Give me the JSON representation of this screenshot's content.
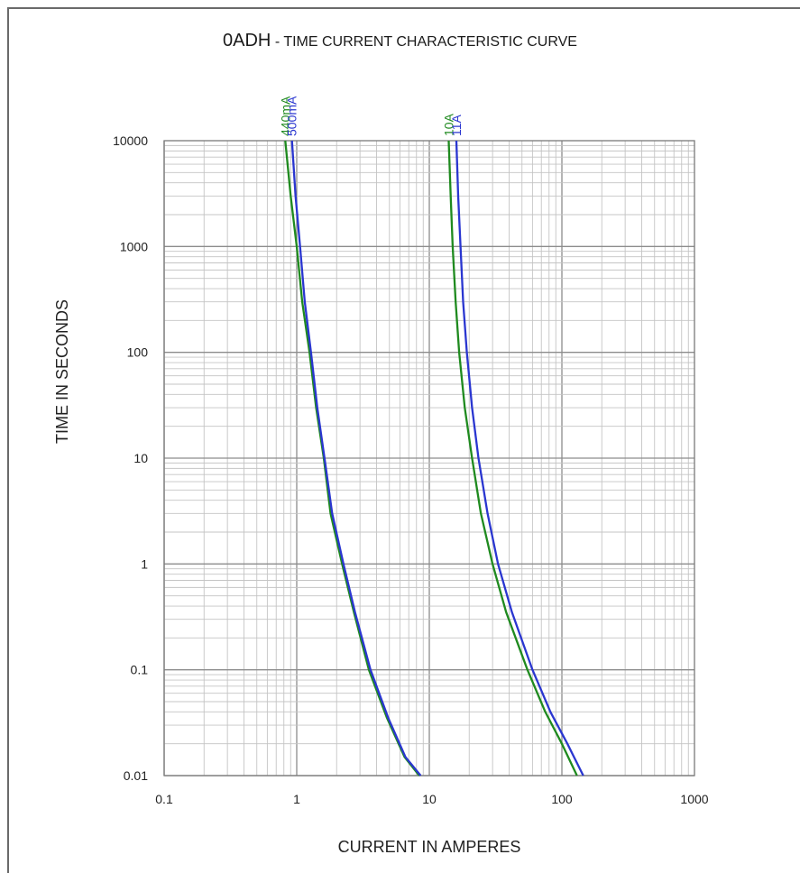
{
  "title_main": "0ADH",
  "title_sub": "- TIME CURRENT CHARACTERISTIC CURVE",
  "chart_data": {
    "type": "line",
    "title": "0ADH - TIME CURRENT CHARACTERISTIC CURVE",
    "xlabel": "CURRENT IN AMPERES",
    "ylabel": "TIME IN SECONDS",
    "xscale": "log",
    "yscale": "log",
    "xlim": [
      0.1,
      1000
    ],
    "ylim": [
      0.01,
      10000
    ],
    "x_ticks": [
      "0.1",
      "1",
      "10",
      "100",
      "1000"
    ],
    "y_ticks": [
      "0.01",
      "0.1",
      "1",
      "10",
      "100",
      "1000",
      "10000"
    ],
    "grid": true,
    "legend": "labels above curves at top",
    "series": [
      {
        "name": "440mA",
        "color": "#1f8a1f",
        "points": [
          [
            0.82,
            10000
          ],
          [
            0.9,
            3000
          ],
          [
            1.0,
            1000
          ],
          [
            1.1,
            300
          ],
          [
            1.25,
            100
          ],
          [
            1.4,
            30
          ],
          [
            1.6,
            10
          ],
          [
            1.8,
            3
          ],
          [
            2.2,
            1
          ],
          [
            2.7,
            0.35
          ],
          [
            3.5,
            0.1
          ],
          [
            4.8,
            0.035
          ],
          [
            6.5,
            0.015
          ],
          [
            8.4,
            0.01
          ]
        ]
      },
      {
        "name": "500mA",
        "color": "#2a36d0",
        "points": [
          [
            0.92,
            10000
          ],
          [
            0.98,
            3000
          ],
          [
            1.06,
            1000
          ],
          [
            1.15,
            300
          ],
          [
            1.28,
            100
          ],
          [
            1.43,
            30
          ],
          [
            1.62,
            10
          ],
          [
            1.85,
            3
          ],
          [
            2.25,
            1
          ],
          [
            2.75,
            0.35
          ],
          [
            3.6,
            0.1
          ],
          [
            4.9,
            0.035
          ],
          [
            6.6,
            0.015
          ],
          [
            8.6,
            0.01
          ]
        ]
      },
      {
        "name": "10A",
        "color": "#1f8a1f",
        "points": [
          [
            14,
            10000
          ],
          [
            14.5,
            3000
          ],
          [
            15,
            1000
          ],
          [
            15.8,
            300
          ],
          [
            16.8,
            100
          ],
          [
            18.5,
            30
          ],
          [
            21,
            10
          ],
          [
            24.5,
            3
          ],
          [
            30,
            1
          ],
          [
            38,
            0.35
          ],
          [
            55,
            0.1
          ],
          [
            75,
            0.04
          ],
          [
            100,
            0.02
          ],
          [
            130,
            0.01
          ]
        ]
      },
      {
        "name": "11A",
        "color": "#2a36d0",
        "points": [
          [
            16,
            10000
          ],
          [
            16.5,
            3000
          ],
          [
            17.2,
            1000
          ],
          [
            18,
            300
          ],
          [
            19.2,
            100
          ],
          [
            21,
            30
          ],
          [
            23.5,
            10
          ],
          [
            27.5,
            3
          ],
          [
            33,
            1
          ],
          [
            42,
            0.35
          ],
          [
            60,
            0.1
          ],
          [
            82,
            0.04
          ],
          [
            110,
            0.02
          ],
          [
            145,
            0.01
          ]
        ]
      }
    ]
  }
}
